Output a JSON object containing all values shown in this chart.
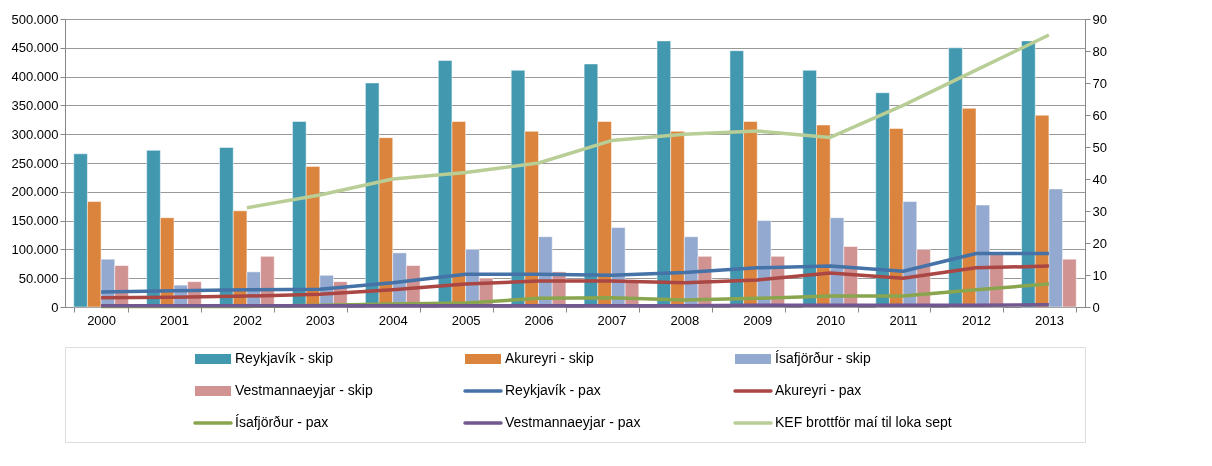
{
  "chart_data": {
    "type": "bar",
    "categories": [
      "2000",
      "2001",
      "2002",
      "2003",
      "2004",
      "2005",
      "2006",
      "2007",
      "2008",
      "2009",
      "2010",
      "2011",
      "2012",
      "2013"
    ],
    "series": [
      {
        "name": "Reykjavík - skip",
        "color": "#4198af",
        "values": [
          266000,
          272000,
          277000,
          322000,
          389000,
          428000,
          411000,
          422000,
          462000,
          445000,
          411000,
          372000,
          450000,
          462000
        ]
      },
      {
        "name": "Akureyri - skip",
        "color": "#db843d",
        "values": [
          183000,
          155000,
          167000,
          244000,
          294000,
          322000,
          305000,
          322000,
          305000,
          322000,
          316000,
          310000,
          345000,
          333000
        ]
      },
      {
        "name": "Ísafjörður - skip",
        "color": "#93a9cf",
        "values": [
          83000,
          38000,
          61000,
          55000,
          94000,
          100000,
          122000,
          138000,
          122000,
          150000,
          155000,
          183000,
          177000,
          205000
        ]
      },
      {
        "name": "Vestmannaeyjar - skip",
        "color": "#d19392",
        "values": [
          72000,
          44000,
          88000,
          44000,
          72000,
          50000,
          61000,
          47000,
          88000,
          88000,
          105000,
          100000,
          92000,
          83000
        ]
      },
      {
        "name": "Reykjavík - pax",
        "type": "line",
        "color": "#4572a7",
        "values": [
          26000,
          28000,
          30000,
          31000,
          42000,
          57000,
          57000,
          55000,
          60000,
          68000,
          71000,
          62000,
          93000,
          93000
        ]
      },
      {
        "name": "Akureyri - pax",
        "type": "line",
        "color": "#aa4643",
        "values": [
          16000,
          17000,
          19000,
          22000,
          30000,
          40000,
          45000,
          45000,
          42000,
          47000,
          59000,
          50000,
          68000,
          71000
        ]
      },
      {
        "name": "Ísafjörður - pax",
        "type": "line",
        "color": "#89a54e",
        "values": [
          1000,
          1000,
          1000,
          3000,
          5000,
          7000,
          15000,
          16000,
          12000,
          15000,
          19000,
          19000,
          30000,
          40000
        ]
      },
      {
        "name": "Vestmannaeyjar - pax",
        "type": "line",
        "color": "#71588f",
        "values": [
          2000,
          2000,
          2000,
          2000,
          2000,
          2000,
          2000,
          2000,
          2000,
          3000,
          3000,
          3000,
          3000,
          4000
        ]
      },
      {
        "name": "KEF brottför maí til loka sept",
        "type": "line",
        "axis": "y2",
        "color": "#b9cd96",
        "values": [
          null,
          null,
          31,
          35,
          40,
          42,
          45,
          52,
          54,
          55,
          53,
          63,
          74,
          85
        ]
      }
    ],
    "ylim": [
      0,
      500000
    ],
    "yticks": [
      0,
      {
        "value": 50000,
        "label": "50.000"
      },
      {
        "value": 100000,
        "label": "100.000"
      },
      {
        "value": 150000,
        "label": "150.000"
      },
      {
        "value": 200000,
        "label": "200.000"
      },
      {
        "value": 250000,
        "label": "250.000"
      },
      {
        "value": 300000,
        "label": "300.000"
      },
      {
        "value": 350000,
        "label": "350.000"
      },
      {
        "value": 400000,
        "label": "400.000"
      },
      {
        "value": 450000,
        "label": "450.000"
      },
      {
        "value": 500000,
        "label": "500.000"
      }
    ],
    "y2lim": [
      0,
      90
    ],
    "y2ticks": [
      0,
      10,
      20,
      30,
      40,
      50,
      60,
      70,
      80,
      90
    ],
    "grid": "y",
    "legend": "bottom"
  }
}
